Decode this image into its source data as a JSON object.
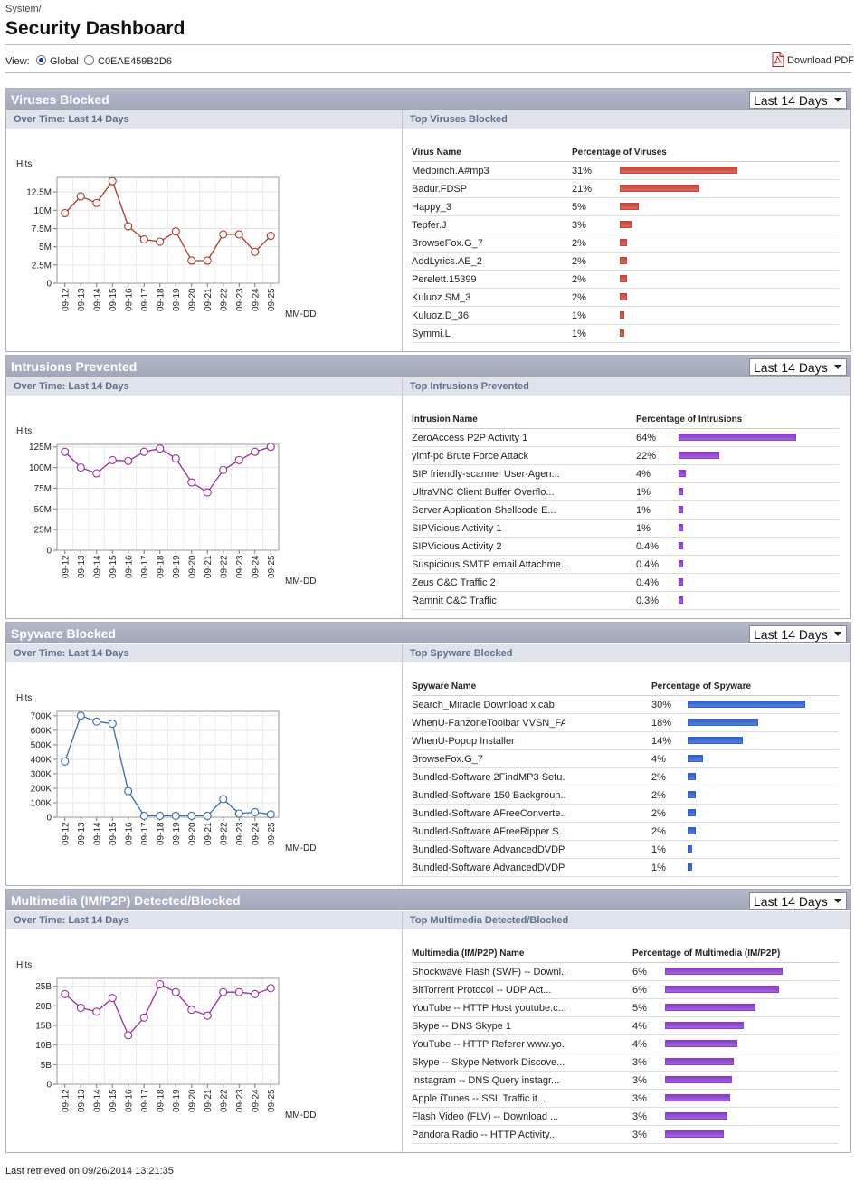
{
  "header": {
    "breadcrumb": "System/",
    "title": "Security Dashboard",
    "view_label": "View:",
    "view_options": [
      {
        "label": "Global",
        "selected": true
      },
      {
        "label": "C0EAE459B2D6",
        "selected": false
      }
    ],
    "download_label": "Download PDF"
  },
  "panels": [
    {
      "title": "Viruses Blocked",
      "range": "Last 14 Days",
      "over_time_title": "Over Time: Last 14 Days",
      "top_title": "Top Viruses Blocked",
      "col_name": "Virus Name",
      "col_pct": "Percentage of Viruses",
      "color": "#a33a2a",
      "bar_color": "#c9463a",
      "rows": [
        {
          "name": "Medpinch.A#mp3",
          "pct": "31%",
          "value": 31
        },
        {
          "name": "Badur.FDSP",
          "pct": "21%",
          "value": 21
        },
        {
          "name": "Happy_3",
          "pct": "5%",
          "value": 5
        },
        {
          "name": "Tepfer.J",
          "pct": "3%",
          "value": 3
        },
        {
          "name": "BrowseFox.G_7",
          "pct": "2%",
          "value": 2
        },
        {
          "name": "AddLyrics.AE_2",
          "pct": "2%",
          "value": 2
        },
        {
          "name": "Perelett.15399",
          "pct": "2%",
          "value": 2
        },
        {
          "name": "Kuluoz.SM_3",
          "pct": "2%",
          "value": 2
        },
        {
          "name": "Kuluoz.D_36",
          "pct": "1%",
          "value": 1
        },
        {
          "name": "Symmi.L",
          "pct": "1%",
          "value": 1
        }
      ],
      "chart_data": {
        "type": "line",
        "ylabel": "Hits",
        "xlabel": "MM-DD",
        "x": [
          "09-12",
          "09-13",
          "09-14",
          "09-15",
          "09-16",
          "09-17",
          "09-18",
          "09-19",
          "09-20",
          "09-21",
          "09-22",
          "09-23",
          "09-24",
          "09-25"
        ],
        "values": [
          9.6,
          11.9,
          11.0,
          14.0,
          7.8,
          6.0,
          5.7,
          7.1,
          3.1,
          3.1,
          6.7,
          6.7,
          4.3,
          6.5
        ],
        "yticks": [
          0,
          2.5,
          5,
          7.5,
          10,
          12.5
        ],
        "ytick_labels": [
          "0",
          "2.5M",
          "5M",
          "7.5M",
          "10M",
          "12.5M"
        ],
        "ylim": [
          0,
          14.5
        ]
      }
    },
    {
      "title": "Intrusions Prevented",
      "range": "Last 14 Days",
      "over_time_title": "Over Time: Last 14 Days",
      "top_title": "Top Intrusions Prevented",
      "col_name": "Intrusion Name",
      "col_pct": "Percentage of Intrusions",
      "color": "#9a2f98",
      "bar_color": "#8a3bd0",
      "rows": [
        {
          "name": "ZeroAccess P2P Activity 1",
          "pct": "64%",
          "value": 64
        },
        {
          "name": "ylmf-pc Brute Force Attack",
          "pct": "22%",
          "value": 22
        },
        {
          "name": "SIP friendly-scanner User-Agen...",
          "pct": "4%",
          "value": 4
        },
        {
          "name": "UltraVNC Client Buffer Overflo...",
          "pct": "1%",
          "value": 1
        },
        {
          "name": "Server Application Shellcode E...",
          "pct": "1%",
          "value": 1
        },
        {
          "name": "SIPVicious Activity 1",
          "pct": "1%",
          "value": 1
        },
        {
          "name": "SIPVicious Activity 2",
          "pct": "0.4%",
          "value": 0.4
        },
        {
          "name": "Suspicious SMTP email Attachme...",
          "pct": "0.4%",
          "value": 0.4
        },
        {
          "name": "Zeus C&C Traffic 2",
          "pct": "0.4%",
          "value": 0.4
        },
        {
          "name": "Ramnit C&C Traffic",
          "pct": "0.3%",
          "value": 0.3
        }
      ],
      "chart_data": {
        "type": "line",
        "ylabel": "Hits",
        "xlabel": "MM-DD",
        "x": [
          "09-12",
          "09-13",
          "09-14",
          "09-15",
          "09-16",
          "09-17",
          "09-18",
          "09-19",
          "09-20",
          "09-21",
          "09-22",
          "09-23",
          "09-24",
          "09-25"
        ],
        "values": [
          119,
          100,
          93,
          109,
          108,
          119,
          123,
          111,
          82,
          70,
          97,
          109,
          119,
          125
        ],
        "yticks": [
          0,
          25,
          50,
          75,
          100,
          125
        ],
        "ytick_labels": [
          "0",
          "25M",
          "50M",
          "75M",
          "100M",
          "125M"
        ],
        "ylim": [
          0,
          128
        ]
      }
    },
    {
      "title": "Spyware Blocked",
      "range": "Last 14 Days",
      "over_time_title": "Over Time: Last 14 Days",
      "top_title": "Top Spyware Blocked",
      "col_name": "Spyware Name",
      "col_pct": "Percentage of Spyware",
      "color": "#3a6aa8",
      "bar_color": "#2f5fc9",
      "rows": [
        {
          "name": "Search_Miracle Download x.cab",
          "pct": "30%",
          "value": 30
        },
        {
          "name": "WhenU-FanzoneToolbar VVSN_FANZ...",
          "pct": "18%",
          "value": 18
        },
        {
          "name": "WhenU-Popup Installer",
          "pct": "14%",
          "value": 14
        },
        {
          "name": "BrowseFox.G_7",
          "pct": "4%",
          "value": 4
        },
        {
          "name": "Bundled-Software 2FindMP3 Setu...",
          "pct": "2%",
          "value": 2
        },
        {
          "name": "Bundled-Software 150 Backgroun...",
          "pct": "2%",
          "value": 2
        },
        {
          "name": "Bundled-Software AFreeConverte...",
          "pct": "2%",
          "value": 2
        },
        {
          "name": "Bundled-Software AFreeRipper S...",
          "pct": "2%",
          "value": 2
        },
        {
          "name": "Bundled-Software AdvancedDVDPl...",
          "pct": "1%",
          "value": 1
        },
        {
          "name": "Bundled-Software AdvancedDVDPl...",
          "pct": "1%",
          "value": 1
        }
      ],
      "chart_data": {
        "type": "line",
        "ylabel": "Hits",
        "xlabel": "MM-DD",
        "x": [
          "09-12",
          "09-13",
          "09-14",
          "09-15",
          "09-16",
          "09-17",
          "09-18",
          "09-19",
          "09-20",
          "09-21",
          "09-22",
          "09-23",
          "09-24",
          "09-25"
        ],
        "values": [
          385,
          700,
          660,
          645,
          180,
          10,
          10,
          10,
          10,
          10,
          125,
          25,
          35,
          20
        ],
        "yticks": [
          0,
          100,
          200,
          300,
          400,
          500,
          600,
          700
        ],
        "ytick_labels": [
          "0",
          "100K",
          "200K",
          "300K",
          "400K",
          "500K",
          "600K",
          "700K"
        ],
        "ylim": [
          0,
          730
        ]
      }
    },
    {
      "title": "Multimedia (IM/P2P) Detected/Blocked",
      "range": "Last 14 Days",
      "over_time_title": "Over Time: Last 14 Days",
      "top_title": "Top Multimedia Detected/Blocked",
      "col_name": "Multimedia (IM/P2P) Name",
      "col_pct": "Percentage of Multimedia (IM/P2P)",
      "color": "#9a2f98",
      "bar_color": "#8a3bd0",
      "rows": [
        {
          "name": "Shockwave Flash (SWF) -- Downl...",
          "pct": "6%",
          "value": 6
        },
        {
          "name": "BitTorrent Protocol -- UDP Act...",
          "pct": "6%",
          "value": 5.8
        },
        {
          "name": "YouTube -- HTTP Host youtube.c...",
          "pct": "5%",
          "value": 4.6
        },
        {
          "name": "Skype -- DNS Skype 1",
          "pct": "4%",
          "value": 4
        },
        {
          "name": "YouTube -- HTTP Referer www.yo...",
          "pct": "4%",
          "value": 3.7
        },
        {
          "name": "Skype -- Skype Network Discove...",
          "pct": "3%",
          "value": 3.5
        },
        {
          "name": "Instagram -- DNS Query instagr...",
          "pct": "3%",
          "value": 3.4
        },
        {
          "name": "Apple iTunes -- SSL Traffic it...",
          "pct": "3%",
          "value": 3.3
        },
        {
          "name": "Flash Video (FLV) -- Download ...",
          "pct": "3%",
          "value": 3.2
        },
        {
          "name": "Pandora Radio -- HTTP Activity...",
          "pct": "3%",
          "value": 3.0
        }
      ],
      "chart_data": {
        "type": "line",
        "ylabel": "Hits",
        "xlabel": "MM-DD",
        "x": [
          "09-12",
          "09-13",
          "09-14",
          "09-15",
          "09-16",
          "09-17",
          "09-18",
          "09-19",
          "09-20",
          "09-21",
          "09-22",
          "09-23",
          "09-24",
          "09-25"
        ],
        "values": [
          23.0,
          19.5,
          18.5,
          22.0,
          12.5,
          17.0,
          25.5,
          23.5,
          19.0,
          17.5,
          23.5,
          23.5,
          23.0,
          24.5
        ],
        "yticks": [
          0,
          5,
          10,
          15,
          20,
          25
        ],
        "ytick_labels": [
          "0",
          "5B",
          "10B",
          "15B",
          "20B",
          "25B"
        ],
        "ylim": [
          0,
          27
        ]
      }
    }
  ],
  "footer": {
    "last_retrieved": "Last retrieved on 09/26/2014 13:21:35"
  }
}
